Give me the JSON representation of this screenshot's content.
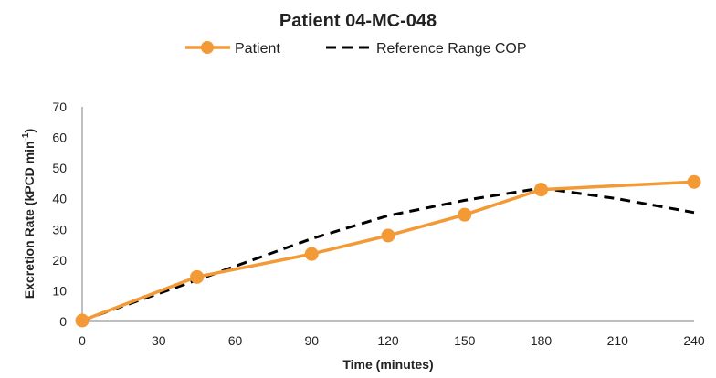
{
  "chart_data": {
    "type": "line",
    "title": "Patient 04-MC-048",
    "xlabel": "Time (minutes)",
    "ylabel_main": "Excretion Rate (kPCD min",
    "ylabel_sup": "-1",
    "ylabel_close": ")",
    "xlim": [
      0,
      240
    ],
    "ylim": [
      0,
      70
    ],
    "x_ticks": [
      0,
      30,
      60,
      90,
      120,
      150,
      180,
      210,
      240
    ],
    "y_ticks": [
      0,
      10,
      20,
      30,
      40,
      50,
      60,
      70
    ],
    "grid": false,
    "legend_position": "top",
    "series": [
      {
        "name": "Patient",
        "color": "#f39a36",
        "style": "solid-markers",
        "points": [
          {
            "x": 0,
            "y": 0.3
          },
          {
            "x": 45,
            "y": 14.5
          },
          {
            "x": 90,
            "y": 22
          },
          {
            "x": 120,
            "y": 28
          },
          {
            "x": 150,
            "y": 34.8
          },
          {
            "x": 180,
            "y": 43
          },
          {
            "x": 240,
            "y": 45.5
          }
        ]
      },
      {
        "name": "Reference Range COP",
        "color": "#000000",
        "style": "dashed",
        "points": [
          {
            "x": 0,
            "y": 0.3
          },
          {
            "x": 45,
            "y": 13.5
          },
          {
            "x": 60,
            "y": 18
          },
          {
            "x": 90,
            "y": 27
          },
          {
            "x": 120,
            "y": 34.5
          },
          {
            "x": 150,
            "y": 39.5
          },
          {
            "x": 180,
            "y": 43.5
          },
          {
            "x": 210,
            "y": 40
          },
          {
            "x": 240,
            "y": 35.5
          }
        ]
      }
    ]
  }
}
